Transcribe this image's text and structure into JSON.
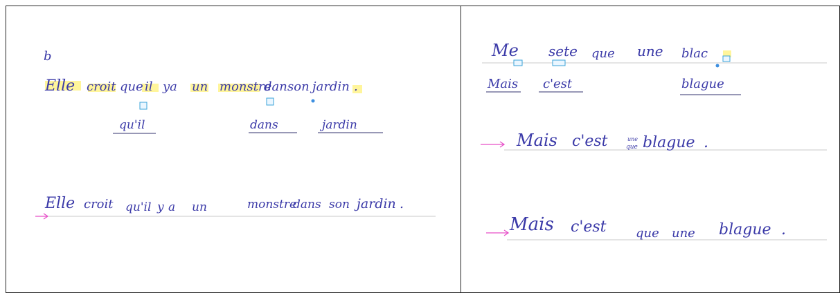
{
  "left_page": {
    "line1": {
      "words": [
        "Elle",
        "croit",
        "que",
        "il",
        "ya",
        "un",
        "monstre",
        "dan",
        "son",
        "jardin",
        "."
      ]
    },
    "corrections": [
      "qu'il",
      "dans",
      "jardin"
    ],
    "line2": {
      "words": [
        "Elle",
        "croit",
        "qu'il",
        "y",
        "a",
        "un",
        "monstre",
        "dans",
        "son",
        "jardin",
        "."
      ]
    }
  },
  "right_page": {
    "line1": {
      "words": [
        "Me",
        "sete",
        "que",
        "une",
        "blac"
      ]
    },
    "corrections": [
      "Mais",
      "c'est",
      "blague"
    ],
    "line2": {
      "words": [
        "Mais",
        "c'est",
        "que",
        "une",
        "blague",
        "."
      ]
    },
    "line3": {
      "words": [
        "Mais",
        "c'est",
        "que",
        "une",
        "blague",
        "."
      ]
    }
  },
  "colors": {
    "ink": "#3b3aa8",
    "highlight": "#fff27a",
    "arrow": "#e64fc8",
    "box": "#3aa3d8"
  }
}
